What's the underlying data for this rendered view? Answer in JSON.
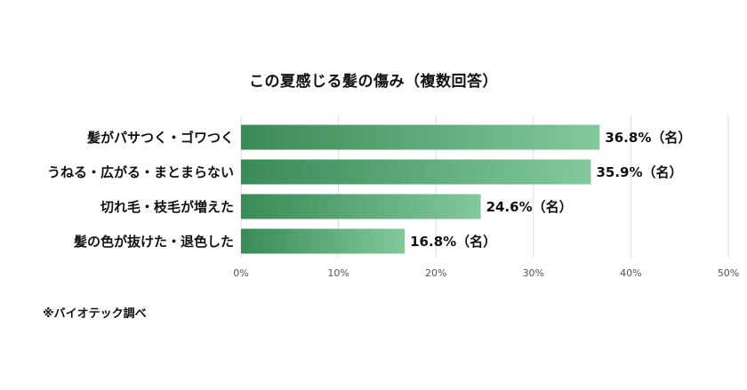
{
  "chart_data": {
    "type": "bar",
    "orientation": "horizontal",
    "title": "この夏感じる髪の傷み（複数回答）",
    "categories": [
      "髪がパサつく・ゴワつく",
      "うねる・広がる・まとまらない",
      "切れ毛・枝毛が増えた",
      "髪の色が抜けた・退色した"
    ],
    "values": [
      36.8,
      35.9,
      24.6,
      16.8
    ],
    "value_labels": [
      "36.8%（名）",
      "35.9%（名）",
      "24.6%（名）",
      "16.8%（名）"
    ],
    "xlim": [
      0,
      50
    ],
    "xticks": [
      "0%",
      "10%",
      "20%",
      "30%",
      "40%",
      "50%"
    ],
    "grid": true,
    "bar_color_start": "#3a8a57",
    "bar_color_end": "#82c99c"
  },
  "note": "※バイオテック調べ"
}
